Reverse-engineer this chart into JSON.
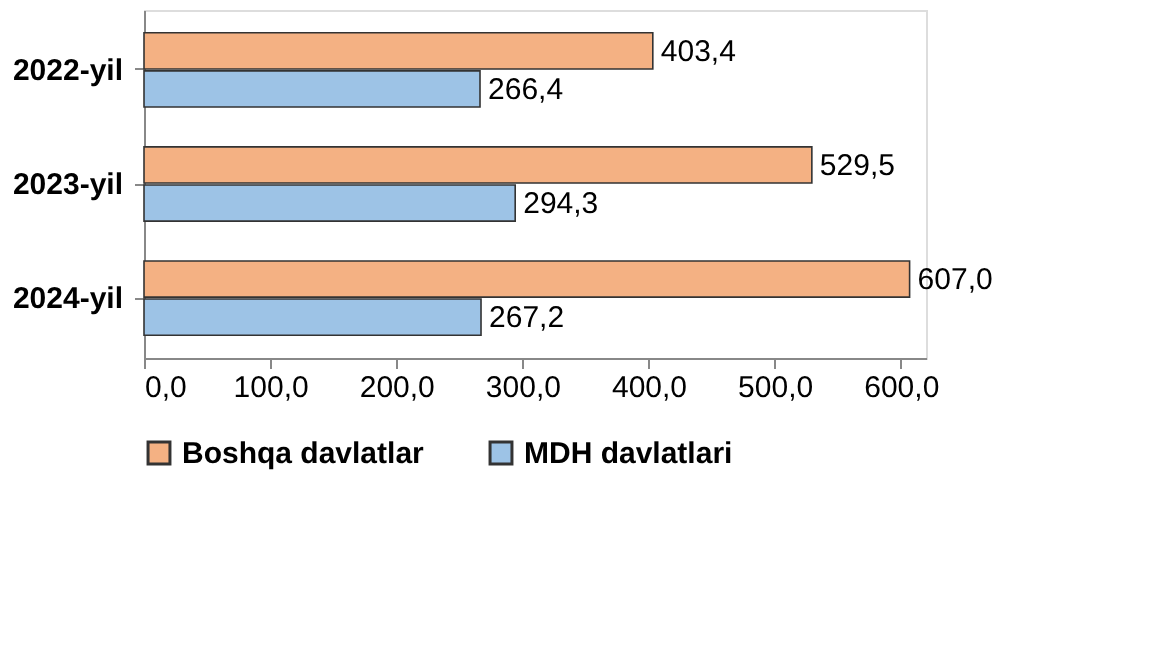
{
  "chart_data": {
    "type": "bar",
    "orientation": "horizontal",
    "categories": [
      "2022-yil",
      "2023-yil",
      "2024-yil"
    ],
    "series": [
      {
        "name": "Boshqa davlatlar",
        "color": "#f4b183",
        "values": [
          403.4,
          529.5,
          607.0
        ],
        "value_labels": [
          "403,4",
          "529,5",
          "607,0"
        ]
      },
      {
        "name": "MDH davlatlari",
        "color": "#9dc3e6",
        "values": [
          266.4,
          294.3,
          267.2
        ],
        "value_labels": [
          "266,4",
          "294,3",
          "267,2"
        ]
      }
    ],
    "xlim": [
      0,
      620
    ],
    "xticks": [
      {
        "value": 0,
        "label": "0,0"
      },
      {
        "value": 100,
        "label": "100,0"
      },
      {
        "value": 200,
        "label": "200,0"
      },
      {
        "value": 300,
        "label": "300,0"
      },
      {
        "value": 400,
        "label": "400,0"
      },
      {
        "value": 500,
        "label": "500,0"
      },
      {
        "value": 600,
        "label": "600,0"
      }
    ],
    "legend": "bottom",
    "grid": false
  }
}
